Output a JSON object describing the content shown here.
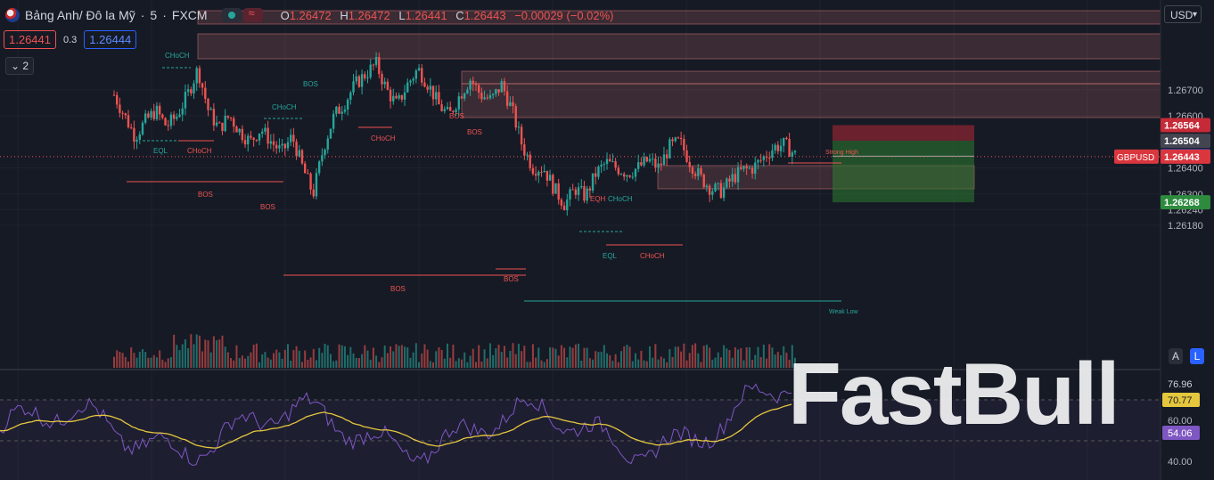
{
  "header": {
    "symbol": "Bảng Anh/ Đô la Mỹ",
    "interval": "5",
    "exchange": "FXCM",
    "open_label": "O",
    "open": "1.26472",
    "high_label": "H",
    "high": "1.26472",
    "low_label": "L",
    "low": "1.26441",
    "close_label": "C",
    "close": "1.26443",
    "change": "−0.00029 (−0.02%)"
  },
  "trade": {
    "sell": "1.26441",
    "spread": "0.3",
    "buy": "1.26444"
  },
  "indicators_count": "2",
  "currency": "USD",
  "scale_buttons": {
    "auto": "A",
    "log": "L"
  },
  "watermark": "FastBull",
  "colors": {
    "up": "#26a69a",
    "down": "#ef5350",
    "bg": "#161a25",
    "zone": "#f08080",
    "target": "#3a7a3a",
    "stop": "#8b2e3a",
    "rsi": "#7e57c2",
    "rsi_ma": "#e5c73d"
  },
  "chart_data": {
    "type": "candlestick",
    "title": "Bảng Anh/ Đô la Mỹ · 5 · FXCM",
    "y_ticks": [
      "1.26700",
      "1.26600",
      "1.26400",
      "1.26300",
      "1.26240",
      "1.26180"
    ],
    "ylim": [
      1.2616,
      1.2681
    ],
    "price_labels": [
      {
        "label": "1.26564",
        "value": 1.26564,
        "color": "#c62a38"
      },
      {
        "label": "1.26504",
        "value": 1.26504,
        "color": "#434651"
      },
      {
        "label": "1.26445",
        "value": 1.26445,
        "color": "#2962ff"
      },
      {
        "label": "1.26443",
        "value": 1.26443,
        "color": "#d9363e",
        "tag": "GBPUSD"
      },
      {
        "label": "1.26268",
        "value": 1.26268,
        "color": "#2e8b3e"
      }
    ],
    "annotations": [
      {
        "text": "CHoCH",
        "color": "#26a69a"
      },
      {
        "text": "EQL",
        "color": "#26a69a"
      },
      {
        "text": "CHoCH",
        "color": "#ef5350"
      },
      {
        "text": "BOS",
        "color": "#ef5350"
      },
      {
        "text": "BOS",
        "color": "#ef5350"
      },
      {
        "text": "BOS",
        "color": "#26a69a"
      },
      {
        "text": "CHoCH",
        "color": "#26a69a"
      },
      {
        "text": "CHoCH",
        "color": "#ef5350"
      },
      {
        "text": "BOS",
        "color": "#ef5350"
      },
      {
        "text": "BOS",
        "color": "#ef5350"
      },
      {
        "text": "BOS",
        "color": "#ef5350"
      },
      {
        "text": "BOS",
        "color": "#ef5350"
      },
      {
        "text": "EQH",
        "color": "#ef5350"
      },
      {
        "text": "CHoCH",
        "color": "#26a69a"
      },
      {
        "text": "EQL",
        "color": "#26a69a"
      },
      {
        "text": "CHoCH",
        "color": "#ef5350"
      },
      {
        "text": "Strong High",
        "color": "#ef5350"
      },
      {
        "text": "Weak Low",
        "color": "#26a69a"
      }
    ],
    "close_path": [
      1.2668,
      1.266,
      1.2652,
      1.2658,
      1.2662,
      1.2656,
      1.266,
      1.2668,
      1.2678,
      1.2662,
      1.2655,
      1.266,
      1.2654,
      1.265,
      1.2655,
      1.265,
      1.2646,
      1.2652,
      1.264,
      1.263,
      1.2648,
      1.266,
      1.2665,
      1.2672,
      1.2676,
      1.268,
      1.267,
      1.2664,
      1.2672,
      1.2678,
      1.2672,
      1.2664,
      1.266,
      1.2668,
      1.2674,
      1.2668,
      1.2666,
      1.2672,
      1.2662,
      1.2648,
      1.264,
      1.264,
      1.2632,
      1.2626,
      1.2632,
      1.2629,
      1.2638,
      1.2642,
      1.264,
      1.2638,
      1.264,
      1.2643,
      1.264,
      1.2648,
      1.265,
      1.2642,
      1.2636,
      1.2632,
      1.2631,
      1.2636,
      1.2639,
      1.264,
      1.2644,
      1.2648,
      1.2649,
      1.2645
    ],
    "rsi": {
      "y_ticks": [
        "60.00",
        "40.00"
      ],
      "labels": [
        {
          "label": "76.96",
          "value": 76.96,
          "color": "#161a25",
          "text": "#d1d4dc"
        },
        {
          "label": "70.77",
          "value": 70.77,
          "color": "#e5c73d",
          "text": "#161a25"
        },
        {
          "label": "54.06",
          "value": 54.06,
          "color": "#7e57c2",
          "text": "#ffffff"
        }
      ],
      "ylim": [
        35,
        80
      ]
    }
  }
}
